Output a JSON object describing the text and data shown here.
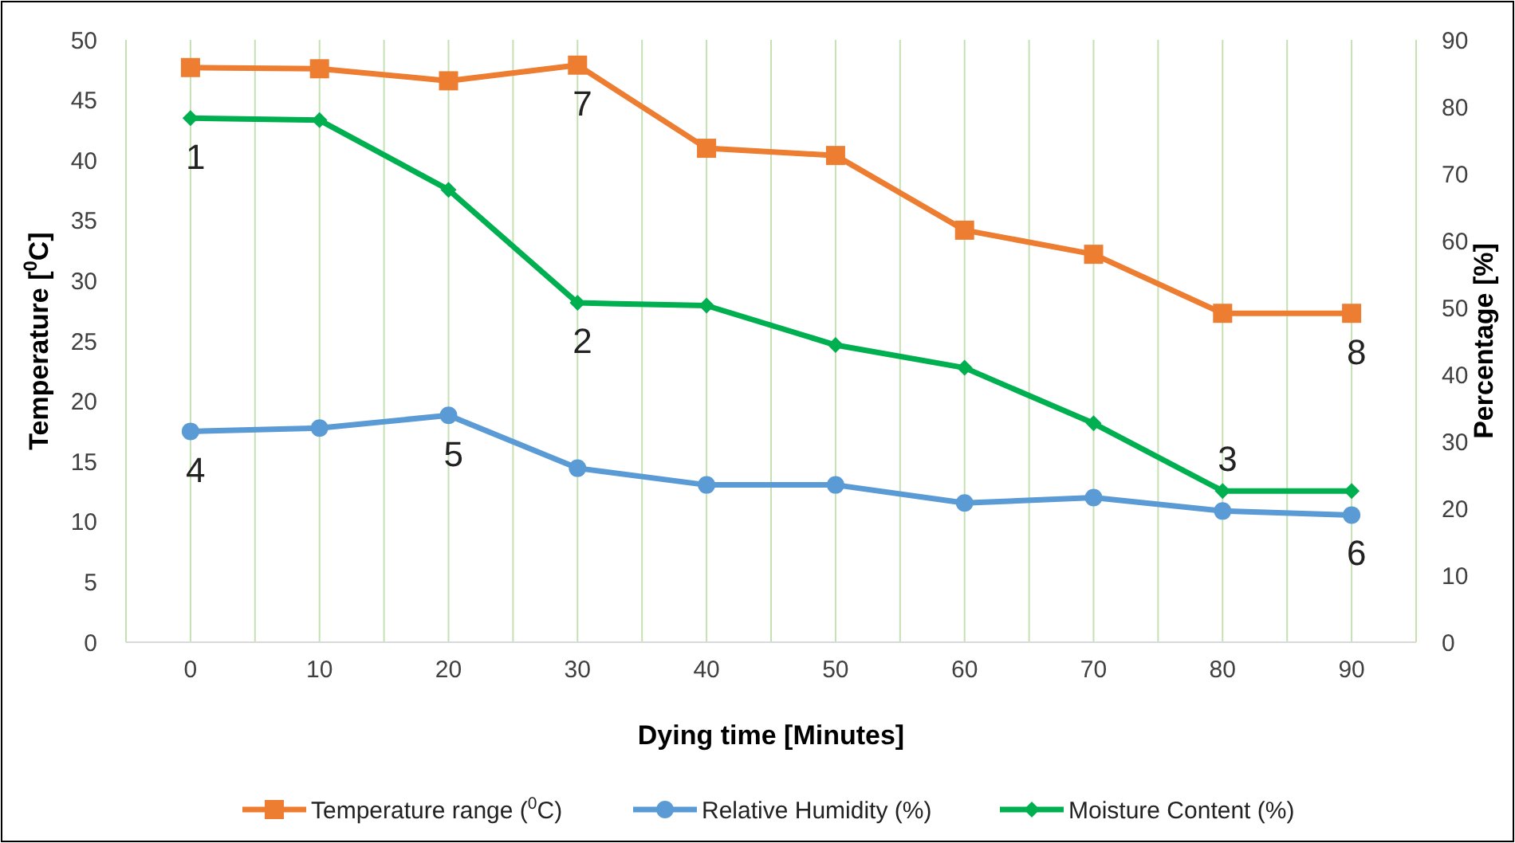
{
  "chart_data": {
    "type": "line",
    "xlabel": "Dying time [Minutes]",
    "ylabel": "Temperature [$^{0}$C]",
    "y2label": "Percentage [%]",
    "categories": [
      "0",
      "10",
      "20",
      "30",
      "40",
      "50",
      "60",
      "70",
      "80",
      "90"
    ],
    "ylim": [
      0,
      50
    ],
    "yticks": [
      0,
      5,
      10,
      15,
      20,
      25,
      30,
      35,
      40,
      45,
      50
    ],
    "y2lim": [
      0,
      90
    ],
    "y2ticks": [
      0,
      10,
      20,
      30,
      40,
      50,
      60,
      70,
      80,
      90
    ],
    "grid": "x",
    "legend": "bottom",
    "series": [
      {
        "name": "Temperature range ($^{0}$C)",
        "color": "#ed7d31",
        "marker": "square",
        "values": [
          47.7,
          47.6,
          46.6,
          47.9,
          41.0,
          40.4,
          34.2,
          32.2,
          27.3,
          27.3
        ]
      },
      {
        "name": "Relative Humidity (%)",
        "color": "#5b9bd5",
        "marker": "circle",
        "axis": "y2",
        "values": [
          31.5,
          32.0,
          33.9,
          26.0,
          23.5,
          23.5,
          20.8,
          21.6,
          19.6,
          19.0
        ]
      },
      {
        "name": "Moisture Content (%)",
        "color": "#00b050",
        "marker": "diamond",
        "axis": "y2",
        "values": [
          78.3,
          78.0,
          67.6,
          50.7,
          50.3,
          44.4,
          41.0,
          32.7,
          22.6,
          22.6
        ]
      }
    ],
    "annotations": [
      {
        "text": "1",
        "x": "0",
        "y": 43.5
      },
      {
        "text": "2",
        "x": "30",
        "y": 28.2
      },
      {
        "text": "3",
        "x": "80",
        "y": 12.6
      },
      {
        "text": "4",
        "x": "0",
        "y": 17.5
      },
      {
        "text": "5",
        "x": "20",
        "y": 18.8
      },
      {
        "text": "6",
        "x": "90",
        "y": 10.6
      },
      {
        "text": "7",
        "x": "30",
        "y": 47.9
      },
      {
        "text": "8",
        "x": "90",
        "y": 27.3
      }
    ]
  }
}
